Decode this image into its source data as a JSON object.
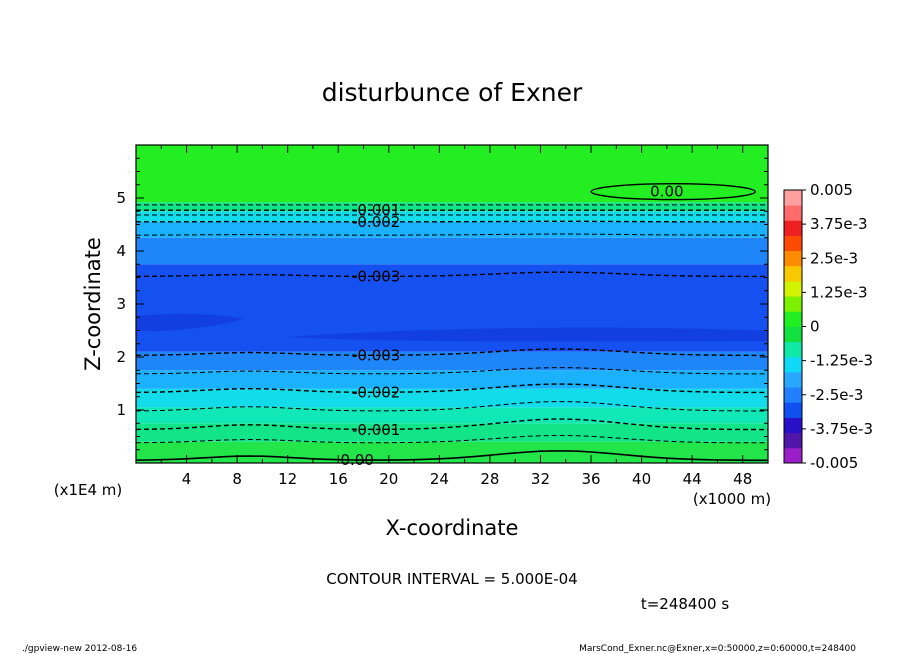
{
  "chart_data": {
    "type": "contour",
    "title": "disturbunce of Exner",
    "xlabel": "X-coordinate",
    "ylabel": "Z-coordinate",
    "x_unit_label": "(x1000 m)",
    "y_unit_label": "(x1E4 m)",
    "xlim": [
      0,
      50
    ],
    "ylim": [
      0,
      6
    ],
    "x_ticks": [
      "4",
      "8",
      "12",
      "16",
      "20",
      "24",
      "28",
      "32",
      "36",
      "40",
      "44",
      "48"
    ],
    "y_ticks": [
      "1",
      "2",
      "3",
      "4",
      "5"
    ],
    "contour_interval_text": "CONTOUR INTERVAL = 5.000E-04",
    "time_text": "t=248400 s",
    "contour_labels": [
      {
        "text": "0.00",
        "x": 42,
        "y": 5.12
      },
      {
        "text": "-0.001",
        "x": 19,
        "y": 4.77
      },
      {
        "text": "-0.002",
        "x": 19,
        "y": 4.55
      },
      {
        "text": "-0.003",
        "x": 19,
        "y": 3.52
      },
      {
        "text": "-0.003",
        "x": 19,
        "y": 2.03
      },
      {
        "text": "-0.002",
        "x": 19,
        "y": 1.33
      },
      {
        "text": "-0.001",
        "x": 19,
        "y": 0.62
      },
      {
        "text": "0.00",
        "x": 17.5,
        "y": 0.06
      }
    ],
    "colorbar": {
      "ticks": [
        "0.005",
        "3.75e-3",
        "2.5e-3",
        "1.25e-3",
        "0",
        "-1.25e-3",
        "-2.5e-3",
        "-3.75e-3",
        "-0.005"
      ],
      "colors": [
        "#9b1fc8",
        "#5016a8",
        "#2810c8",
        "#1050f0",
        "#2080ff",
        "#2aa8ff",
        "#10d8f8",
        "#10e8a8",
        "#10e040",
        "#22ef22",
        "#7cf200",
        "#d2f200",
        "#f8c800",
        "#ff8c00",
        "#ff4a00",
        "#ef2020",
        "#ff6a6a",
        "#ffa0a0"
      ]
    }
  },
  "footer": {
    "left": "./gpview-new   2012-08-16",
    "right": "MarsCond_Exner.nc@Exner,x=0:50000,z=0:60000,t=248400"
  }
}
